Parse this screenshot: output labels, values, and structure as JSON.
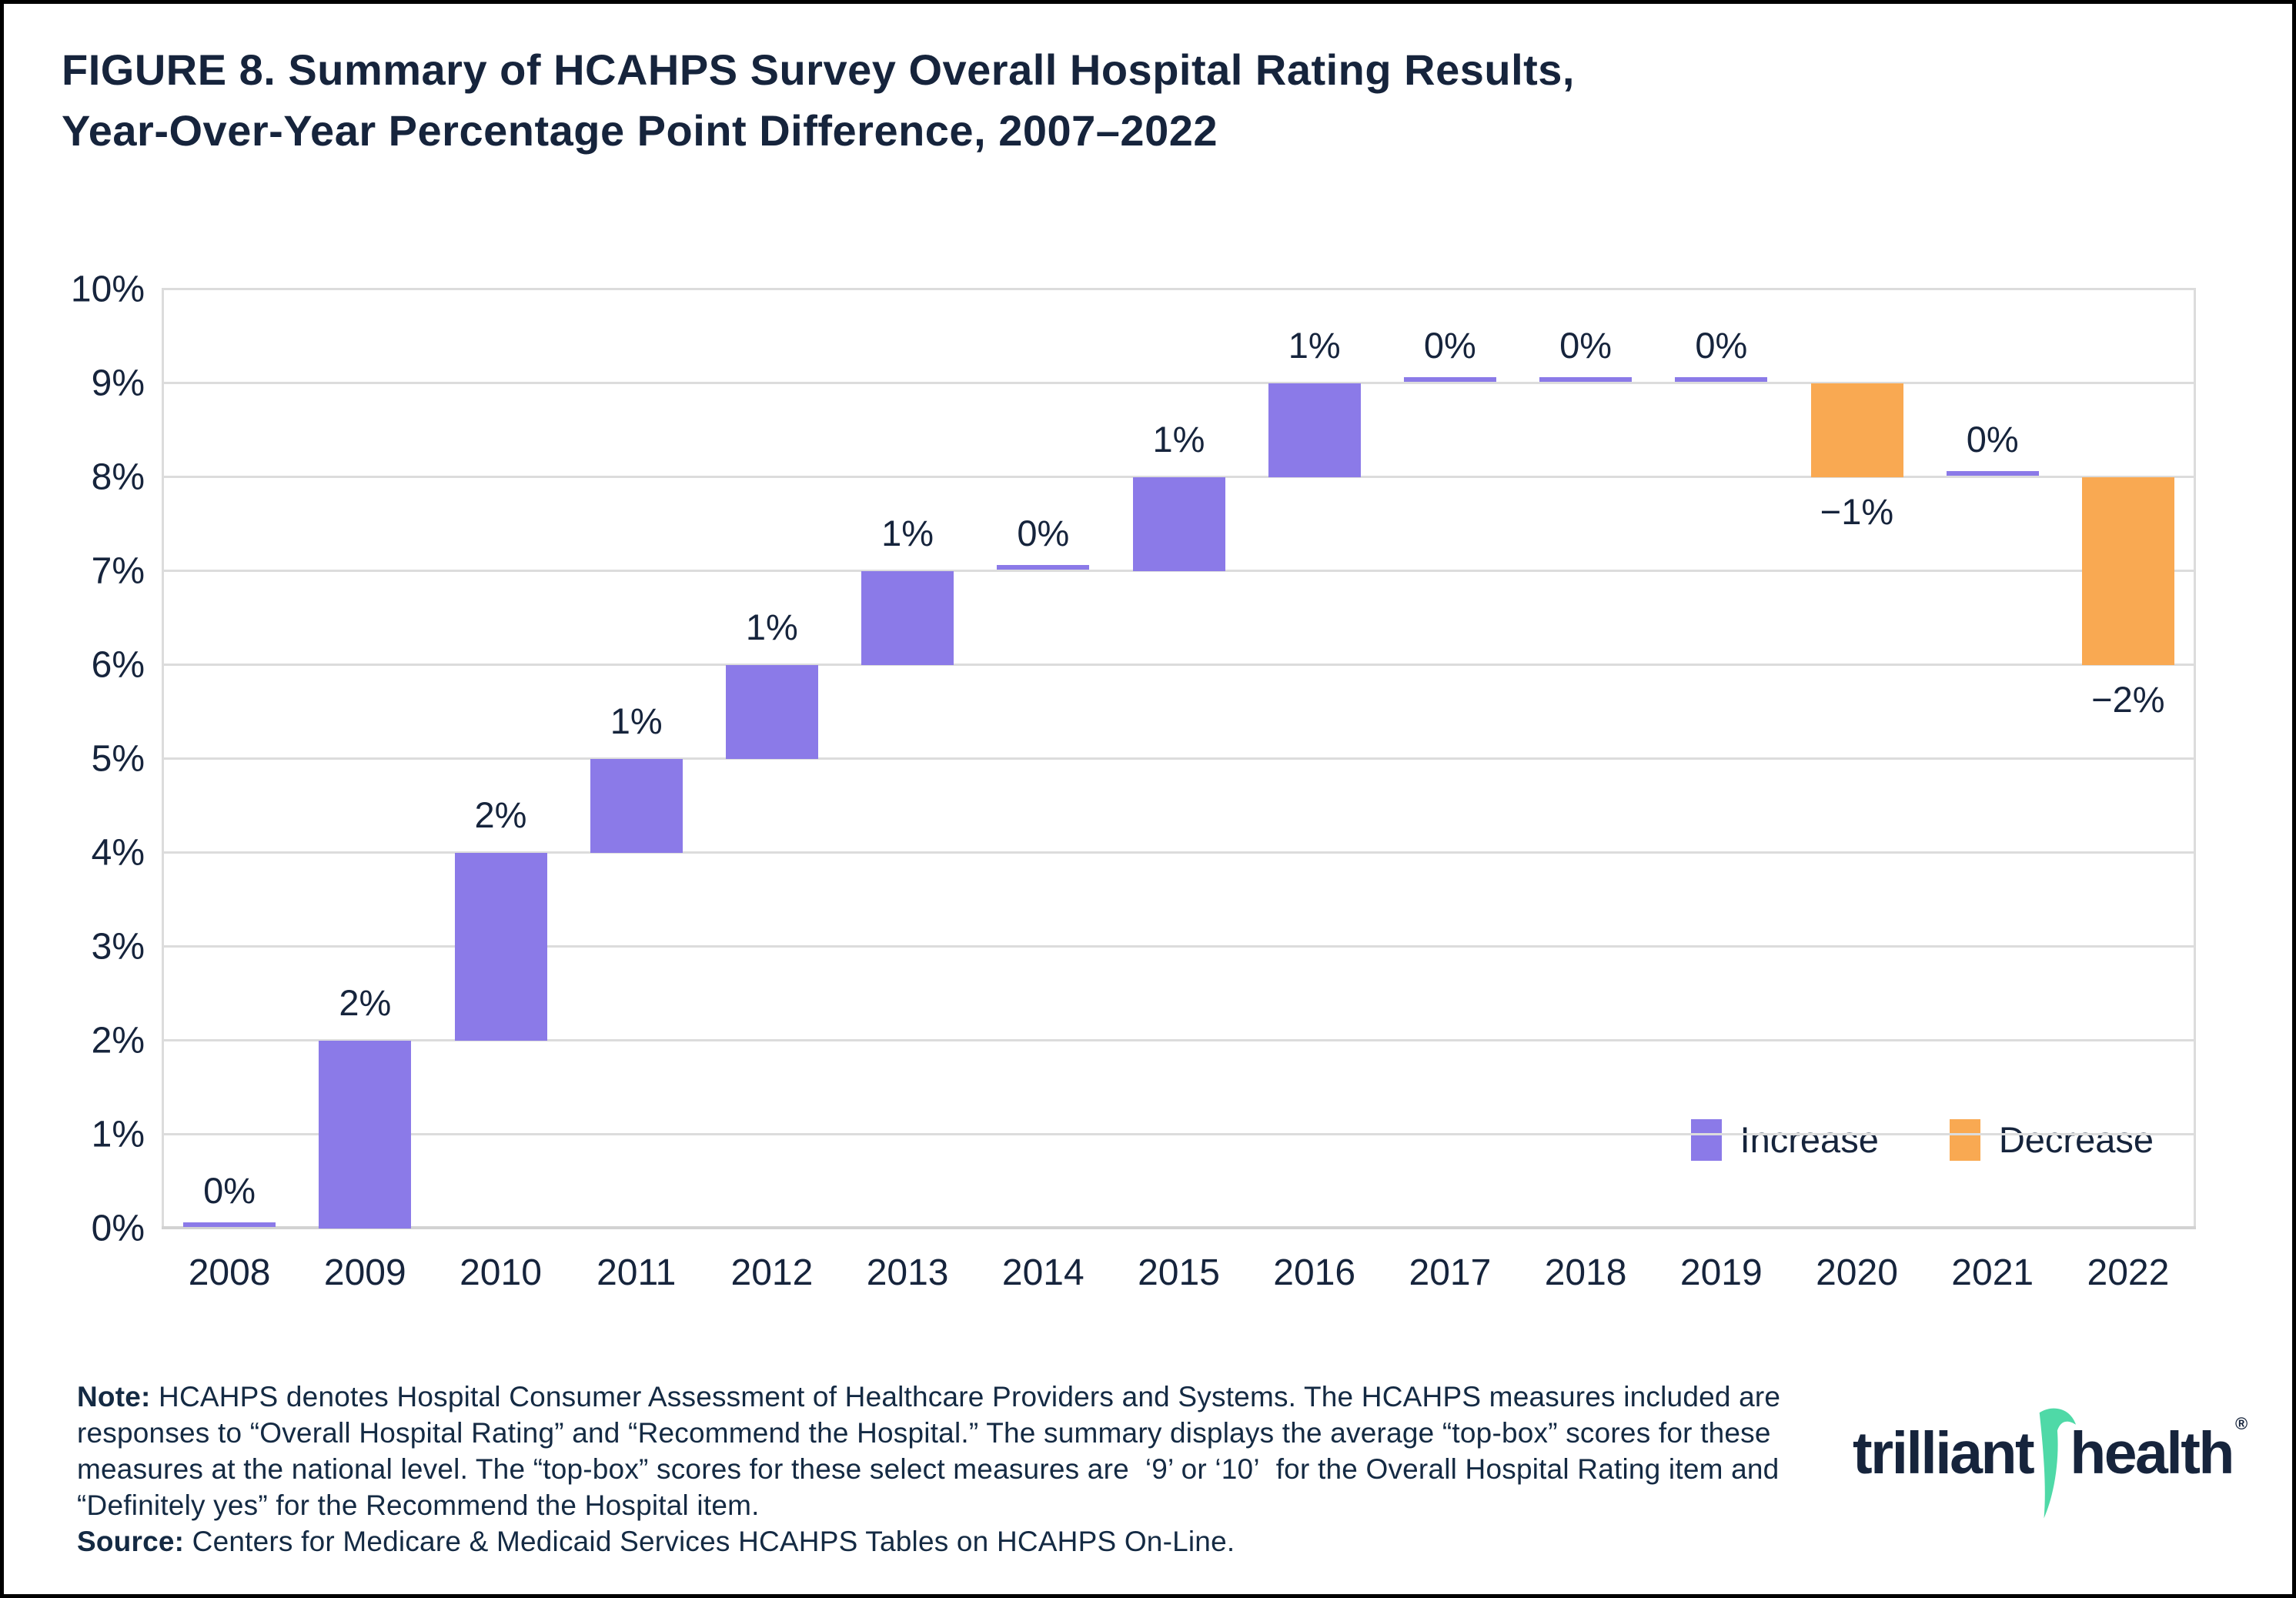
{
  "title": {
    "line1": "FIGURE 8. Summary of HCAHPS Survey Overall Hospital Rating Results,",
    "line2": "Year-Over-Year Percentage Point Difference, 2007–2022"
  },
  "chart_data": {
    "type": "bar",
    "subtype": "waterfall",
    "title": "Summary of HCAHPS Survey Overall Hospital Rating Results, Year-Over-Year Percentage Point Difference, 2007-2022",
    "categories": [
      "2008",
      "2009",
      "2010",
      "2011",
      "2012",
      "2013",
      "2014",
      "2015",
      "2016",
      "2017",
      "2018",
      "2019",
      "2020",
      "2021",
      "2022"
    ],
    "values": [
      0,
      2,
      2,
      1,
      1,
      1,
      0,
      1,
      1,
      0,
      0,
      0,
      -1,
      0,
      -2
    ],
    "labels": [
      "0%",
      "2%",
      "2%",
      "1%",
      "1%",
      "1%",
      "0%",
      "1%",
      "1%",
      "0%",
      "0%",
      "0%",
      "−1%",
      "0%",
      "−2%"
    ],
    "cumulative_start": [
      0,
      0,
      2,
      4,
      5,
      6,
      7,
      7,
      8,
      9,
      9,
      9,
      9,
      8,
      8
    ],
    "cumulative_end": [
      0,
      2,
      4,
      5,
      6,
      7,
      7,
      8,
      9,
      9,
      9,
      9,
      8,
      8,
      6
    ],
    "xlabel": "",
    "ylabel": "",
    "ylim": [
      0,
      10
    ],
    "y_ticks": [
      "0%",
      "1%",
      "2%",
      "3%",
      "4%",
      "5%",
      "6%",
      "7%",
      "8%",
      "9%",
      "10%"
    ],
    "grid": true,
    "legend_position": "inside lower right",
    "legend": [
      {
        "label": "Increase",
        "color": "#8B7AE8"
      },
      {
        "label": "Decrease",
        "color": "#F9A952"
      }
    ],
    "colors": {
      "increase": "#8B7AE8",
      "decrease": "#F9A952",
      "zero_marker": "#8B7AE8",
      "gridline": "#dcdcdc",
      "text": "#16243C"
    }
  },
  "note": {
    "label": "Note:",
    "lines": [
      "HCAHPS denotes Hospital Consumer Assessment of Healthcare Providers and Systems. The HCAHPS measures included are",
      "responses to “Overall Hospital Rating” and “Recommend the Hospital.” The summary displays the average “top-box” scores for these",
      "measures at the national level. The “top-box” scores for these select measures are  ‘9’ or ‘10’  for the Overall Hospital Rating item and",
      "“Definitely yes” for the Recommend the Hospital item."
    ]
  },
  "source": {
    "label": "Source:",
    "text": "Centers for Medicare & Medicaid Services HCAHPS Tables on HCAHPS On-Line."
  },
  "logo": {
    "word1": "trilliant",
    "word2": "health",
    "registered": "®",
    "swoosh_color": "#4FD9A7"
  }
}
